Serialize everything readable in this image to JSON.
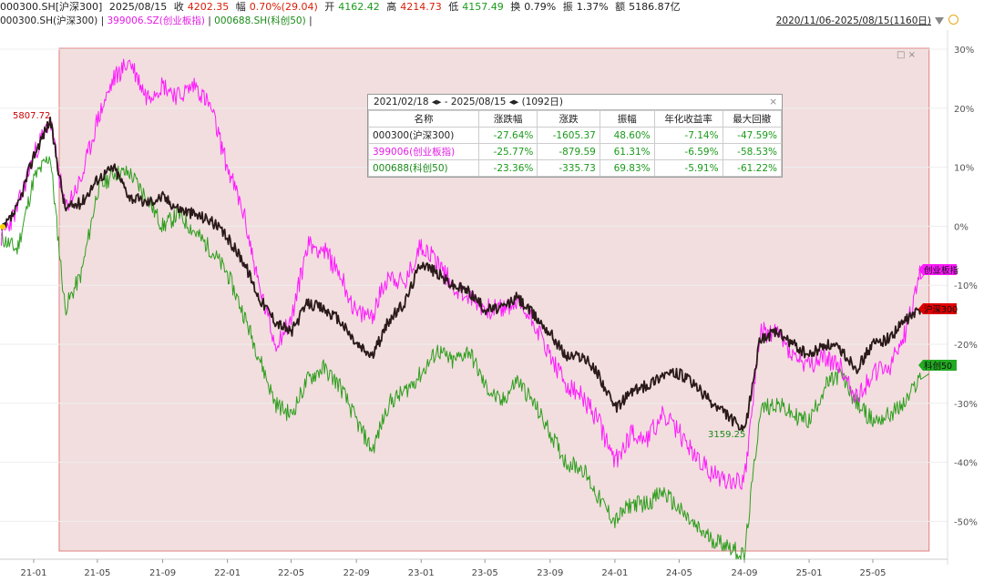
{
  "topbar": {
    "symbol": "000300.SH[沪深300]",
    "date": "2025/08/15",
    "close_label": "收",
    "close": "4202.35",
    "chg_label": "幅",
    "chg": "0.70%(29.04)",
    "open_label": "开",
    "open": "4162.42",
    "high_label": "高",
    "high": "4214.73",
    "low_label": "低",
    "low": "4157.49",
    "turnover_label": "换",
    "turnover": "0.79%",
    "amp_label": "振",
    "amp": "1.37%",
    "amount_label": "额",
    "amount": "5186.87亿",
    "range": "2020/11/06-2025/08/15(1160日)"
  },
  "legend": {
    "s1": "000300.SH(沪深300)",
    "s2": "399006.SZ(创业板指)",
    "s3": "000688.SH(科创50)",
    "sep": "|"
  },
  "colors": {
    "s1": "#2b1a1a",
    "s2": "#ff1aff",
    "s3": "#2e9e1e",
    "shade": "#f2dede",
    "up": "#d81e06",
    "down": "#1a9a1a"
  },
  "stats": {
    "title": "2021/02/18 ◂▸ - 2025/08/15 ◂▸   (1092日)",
    "close": "×",
    "headers": [
      "名称",
      "涨跌幅",
      "涨跌",
      "振幅",
      "年化收益率",
      "最大回撤"
    ],
    "rows": [
      [
        "000300(沪深300)",
        "-27.64%",
        "-1605.37",
        "48.60%",
        "-7.14%",
        "-47.59%"
      ],
      [
        "399006(创业板指)",
        "-25.77%",
        "-879.59",
        "61.31%",
        "-6.59%",
        "-58.53%"
      ],
      [
        "000688(科创50)",
        "-23.36%",
        "-335.73",
        "69.83%",
        "-5.91%",
        "-61.22%"
      ]
    ]
  },
  "window_icons": "□ ×",
  "chart_data": {
    "type": "line",
    "ylim": [
      -56,
      31
    ],
    "y_ticks": [
      "30%",
      "20%",
      "10%",
      "0%",
      "-10%",
      "-20%",
      "-30%",
      "-40%",
      "-50%"
    ],
    "x_ticks": [
      "21-01",
      "21-05",
      "21-09",
      "22-01",
      "22-05",
      "22-09",
      "23-01",
      "23-05",
      "23-09",
      "24-01",
      "24-05",
      "24-09",
      "25-01",
      "25-05"
    ],
    "annotations": {
      "high": "5807.72",
      "low": "3159.25"
    },
    "end_tags": {
      "s2": "创业板指",
      "s1": "沪深300",
      "s3": "科创50"
    },
    "series": [
      {
        "name": "000300.SH(沪深300)",
        "x": [
          "2020-11",
          "2020-12",
          "2021-01",
          "2021-02",
          "2021-03",
          "2021-04",
          "2021-05",
          "2021-06",
          "2021-07",
          "2021-08",
          "2021-09",
          "2021-10",
          "2021-11",
          "2021-12",
          "2022-01",
          "2022-02",
          "2022-03",
          "2022-04",
          "2022-05",
          "2022-06",
          "2022-07",
          "2022-08",
          "2022-09",
          "2022-10",
          "2022-11",
          "2022-12",
          "2023-01",
          "2023-02",
          "2023-03",
          "2023-04",
          "2023-05",
          "2023-06",
          "2023-07",
          "2023-08",
          "2023-09",
          "2023-10",
          "2023-11",
          "2023-12",
          "2024-01",
          "2024-02",
          "2024-03",
          "2024-04",
          "2024-05",
          "2024-06",
          "2024-07",
          "2024-08",
          "2024-09",
          "2024-10",
          "2024-11",
          "2024-12",
          "2025-01",
          "2025-02",
          "2025-03",
          "2025-04",
          "2025-05",
          "2025-06",
          "2025-07",
          "2025-08"
        ],
        "values": [
          -1,
          3,
          12,
          18,
          3,
          4,
          8,
          10,
          5,
          4,
          5,
          3,
          2,
          1,
          -2,
          -6,
          -12,
          -16,
          -18,
          -13,
          -14,
          -16,
          -20,
          -22,
          -16,
          -13,
          -6,
          -8,
          -10,
          -11,
          -14,
          -14,
          -12,
          -15,
          -18,
          -22,
          -22,
          -25,
          -31,
          -28,
          -27,
          -25,
          -25,
          -27,
          -30,
          -32,
          -35,
          -19,
          -18,
          -20,
          -22,
          -20,
          -21,
          -24,
          -20,
          -19,
          -16,
          -14
        ]
      },
      {
        "name": "399006.SZ(创业板指)",
        "x": [
          "2020-11",
          "2020-12",
          "2021-01",
          "2021-02",
          "2021-03",
          "2021-04",
          "2021-05",
          "2021-06",
          "2021-07",
          "2021-08",
          "2021-09",
          "2021-10",
          "2021-11",
          "2021-12",
          "2022-01",
          "2022-02",
          "2022-03",
          "2022-04",
          "2022-05",
          "2022-06",
          "2022-07",
          "2022-08",
          "2022-09",
          "2022-10",
          "2022-11",
          "2022-12",
          "2023-01",
          "2023-02",
          "2023-03",
          "2023-04",
          "2023-05",
          "2023-06",
          "2023-07",
          "2023-08",
          "2023-09",
          "2023-10",
          "2023-11",
          "2023-12",
          "2024-01",
          "2024-02",
          "2024-03",
          "2024-04",
          "2024-05",
          "2024-06",
          "2024-07",
          "2024-08",
          "2024-09",
          "2024-10",
          "2024-11",
          "2024-12",
          "2025-01",
          "2025-02",
          "2025-03",
          "2025-04",
          "2025-05",
          "2025-06",
          "2025-07",
          "2025-08"
        ],
        "values": [
          -2,
          3,
          12,
          18,
          3,
          8,
          18,
          25,
          28,
          22,
          24,
          22,
          24,
          20,
          10,
          2,
          -10,
          -20,
          -16,
          -3,
          -4,
          -8,
          -15,
          -15,
          -8,
          -10,
          -3,
          -6,
          -10,
          -12,
          -14,
          -14,
          -13,
          -16,
          -22,
          -27,
          -29,
          -33,
          -40,
          -35,
          -36,
          -32,
          -35,
          -39,
          -42,
          -43,
          -43,
          -18,
          -18,
          -22,
          -24,
          -22,
          -24,
          -29,
          -25,
          -24,
          -18,
          -7
        ]
      },
      {
        "name": "000688.SH(科创50)",
        "x": [
          "2020-11",
          "2020-12",
          "2021-01",
          "2021-02",
          "2021-03",
          "2021-04",
          "2021-05",
          "2021-06",
          "2021-07",
          "2021-08",
          "2021-09",
          "2021-10",
          "2021-11",
          "2021-12",
          "2022-01",
          "2022-02",
          "2022-03",
          "2022-04",
          "2022-05",
          "2022-06",
          "2022-07",
          "2022-08",
          "2022-09",
          "2022-10",
          "2022-11",
          "2022-12",
          "2023-01",
          "2023-02",
          "2023-03",
          "2023-04",
          "2023-05",
          "2023-06",
          "2023-07",
          "2023-08",
          "2023-09",
          "2023-10",
          "2023-11",
          "2023-12",
          "2024-01",
          "2024-02",
          "2024-03",
          "2024-04",
          "2024-05",
          "2024-06",
          "2024-07",
          "2024-08",
          "2024-09",
          "2024-10",
          "2024-11",
          "2024-12",
          "2025-01",
          "2025-02",
          "2025-03",
          "2025-04",
          "2025-05",
          "2025-06",
          "2025-07",
          "2025-08"
        ],
        "values": [
          -2,
          -4,
          8,
          12,
          -14,
          -8,
          6,
          9,
          9,
          5,
          0,
          2,
          -1,
          -4,
          -8,
          -15,
          -22,
          -30,
          -32,
          -26,
          -24,
          -27,
          -33,
          -38,
          -30,
          -28,
          -25,
          -21,
          -23,
          -21,
          -27,
          -30,
          -26,
          -30,
          -35,
          -40,
          -41,
          -46,
          -50,
          -47,
          -47,
          -45,
          -48,
          -51,
          -53,
          -54,
          -56,
          -31,
          -30,
          -32,
          -33,
          -27,
          -25,
          -30,
          -33,
          -32,
          -30,
          -25
        ]
      }
    ]
  }
}
